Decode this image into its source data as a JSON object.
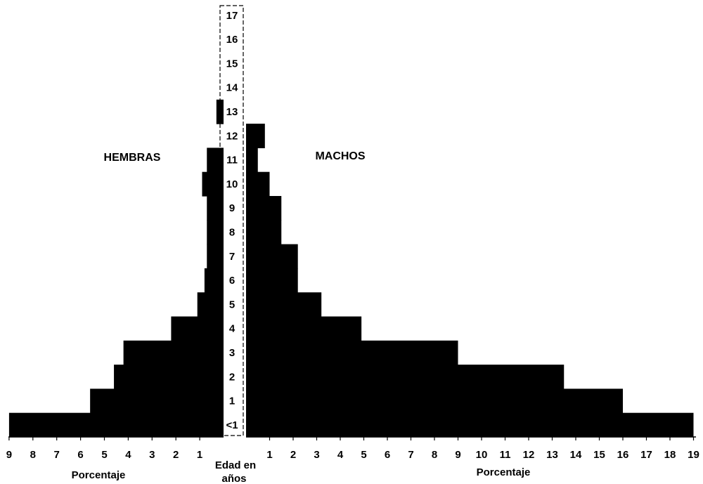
{
  "chart_data": {
    "type": "bar",
    "orientation": "horizontal",
    "subtype": "population-pyramid",
    "categories": [
      "<1",
      "1",
      "2",
      "3",
      "4",
      "5",
      "6",
      "7",
      "8",
      "9",
      "10",
      "11",
      "12",
      "13",
      "14",
      "15",
      "16",
      "17"
    ],
    "series": [
      {
        "name": "HEMBRAS",
        "values": [
          9.0,
          5.6,
          4.6,
          4.2,
          2.2,
          1.1,
          0.8,
          0.7,
          0.7,
          0.7,
          0.9,
          0.7,
          0.0,
          0.3,
          0.0,
          0.0,
          0.0,
          0.0
        ],
        "color": "#000000"
      },
      {
        "name": "MACHOS",
        "values": [
          19.0,
          16.0,
          13.5,
          9.0,
          4.9,
          3.2,
          2.2,
          2.2,
          1.5,
          1.5,
          1.0,
          0.5,
          0.8,
          0.0,
          0.0,
          0.0,
          0.0,
          0.0
        ],
        "color": "#000000"
      }
    ],
    "left_axis": {
      "label": "Porcentaje",
      "ticks": [
        "9",
        "8",
        "7",
        "6",
        "5",
        "4",
        "3",
        "2",
        "1"
      ],
      "max": 9
    },
    "right_axis": {
      "label": "Porcentaje",
      "ticks": [
        "1",
        "2",
        "3",
        "4",
        "5",
        "6",
        "7",
        "8",
        "9",
        "10",
        "11",
        "12",
        "13",
        "14",
        "15",
        "16",
        "17",
        "18",
        "19"
      ],
      "max": 19
    },
    "age_axis": {
      "label_line1": "Edad en",
      "label_line2": "años",
      "ticks": [
        "<1",
        "1",
        "2",
        "3",
        "4",
        "5",
        "6",
        "7",
        "8",
        "9",
        "10",
        "11",
        "12",
        "13",
        "14",
        "15",
        "16",
        "17"
      ]
    },
    "legend": "none",
    "grid": false
  }
}
